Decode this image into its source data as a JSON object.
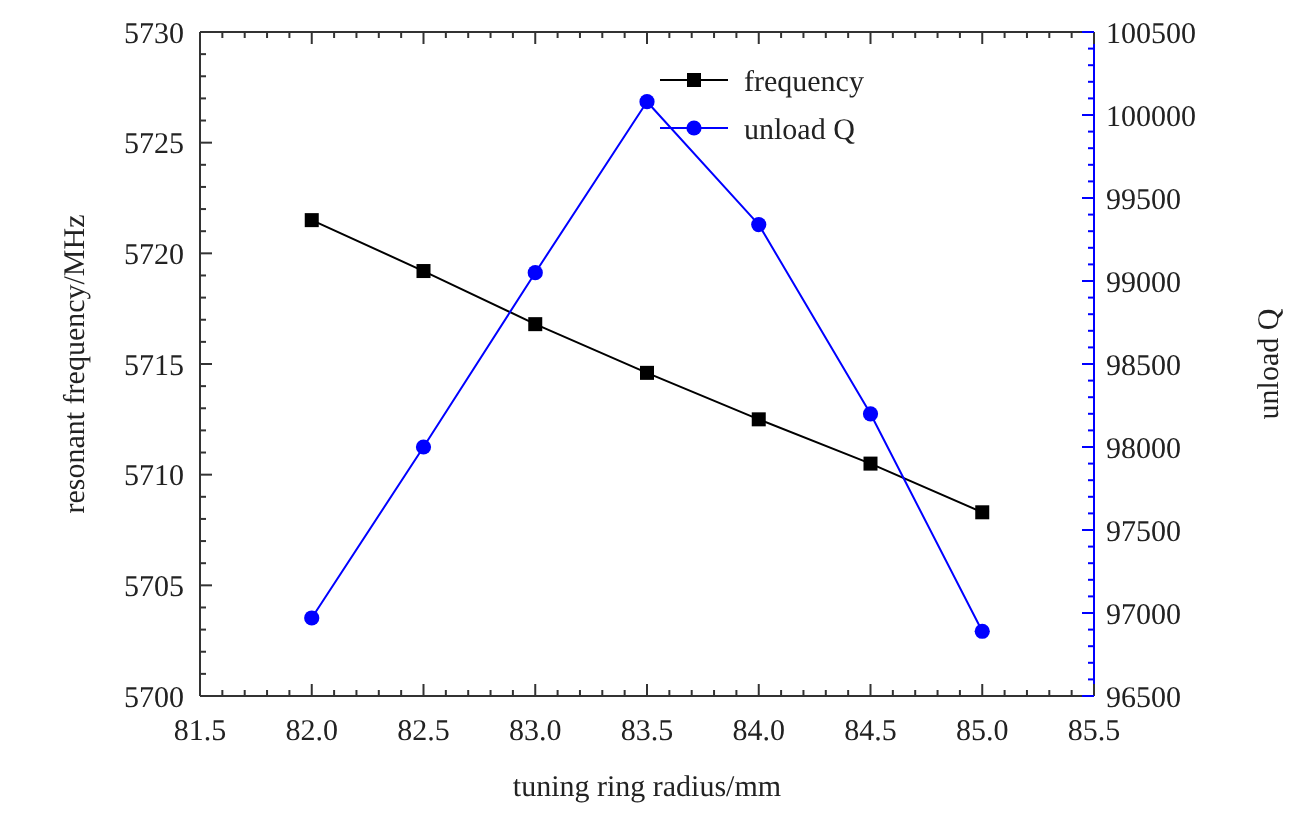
{
  "chart_data": {
    "type": "line",
    "xlabel": "tuning ring radius/mm",
    "ylabel": "resonant frequency/MHz",
    "y2label": "unload Q",
    "x": [
      82.0,
      82.5,
      83.0,
      83.5,
      84.0,
      84.5,
      85.0
    ],
    "series": [
      {
        "name": "frequency",
        "color": "#000000",
        "marker": "square",
        "values": [
          5721.5,
          5719.2,
          5716.8,
          5714.6,
          5712.5,
          5710.5,
          5708.3
        ]
      },
      {
        "name": "unload Q",
        "color": "#0000ff",
        "marker": "circle",
        "axis": "y2",
        "values": [
          96970,
          98000,
          99050,
          100080,
          99340,
          98200,
          96890
        ]
      }
    ],
    "xlim": [
      81.5,
      85.5
    ],
    "xticks": [
      {
        "value": 81.5,
        "label": "81.5"
      },
      {
        "value": 82,
        "label": "82.0"
      },
      {
        "value": 82.5,
        "label": "82.5"
      },
      {
        "value": 83,
        "label": "83.0"
      },
      {
        "value": 83.5,
        "label": "83.5"
      },
      {
        "value": 84,
        "label": "84.0"
      },
      {
        "value": 84.5,
        "label": "84.5"
      },
      {
        "value": 85,
        "label": "85.0"
      },
      {
        "value": 85.5,
        "label": "85.5"
      }
    ],
    "ylim": [
      5700,
      5730
    ],
    "yticks": [
      5700,
      5705,
      5710,
      5715,
      5720,
      5725,
      5730
    ],
    "y2lim": [
      96500,
      100500
    ],
    "y2ticks": [
      96500,
      97000,
      97500,
      98000,
      98500,
      99000,
      99500,
      100000,
      100500
    ],
    "legend": "top right",
    "grid": false,
    "line_style": "solid"
  }
}
